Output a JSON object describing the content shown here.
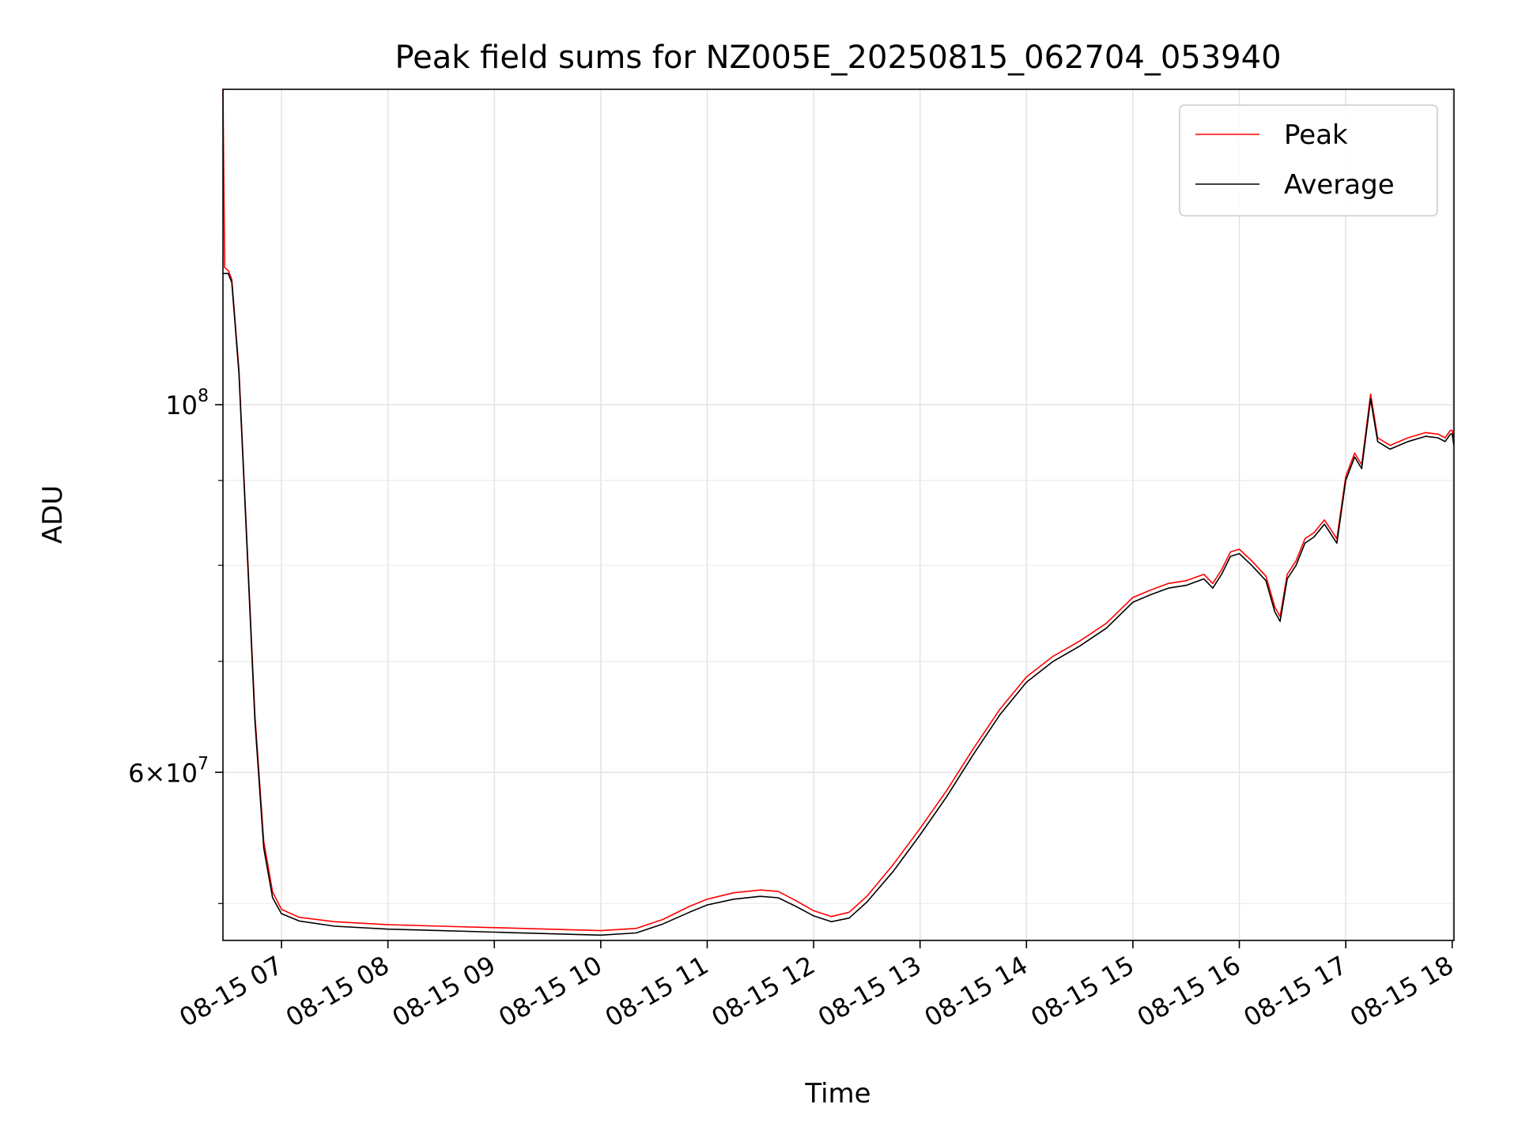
{
  "chart_data": {
    "type": "line",
    "title": "Peak field sums for NZ005E_20250815_062704_053940",
    "xlabel": "Time",
    "ylabel": "ADU",
    "y_scale": "log",
    "grid": true,
    "legend_position": "top-right",
    "xlim": [
      "2025-08-15 06:27",
      "2025-08-15 18:01"
    ],
    "ylim": [
      47500000,
      155000000
    ],
    "x_ticks": [
      {
        "t": "2025-08-15 07:00",
        "label": "08-15 07"
      },
      {
        "t": "2025-08-15 08:00",
        "label": "08-15 08"
      },
      {
        "t": "2025-08-15 09:00",
        "label": "08-15 09"
      },
      {
        "t": "2025-08-15 10:00",
        "label": "08-15 10"
      },
      {
        "t": "2025-08-15 11:00",
        "label": "08-15 11"
      },
      {
        "t": "2025-08-15 12:00",
        "label": "08-15 12"
      },
      {
        "t": "2025-08-15 13:00",
        "label": "08-15 13"
      },
      {
        "t": "2025-08-15 14:00",
        "label": "08-15 14"
      },
      {
        "t": "2025-08-15 15:00",
        "label": "08-15 15"
      },
      {
        "t": "2025-08-15 16:00",
        "label": "08-15 16"
      },
      {
        "t": "2025-08-15 17:00",
        "label": "08-15 17"
      },
      {
        "t": "2025-08-15 18:00",
        "label": "08-15 18"
      }
    ],
    "y_major_ticks": [
      {
        "value": 60000000,
        "base": "6×10",
        "exp": "7"
      },
      {
        "value": 100000000,
        "base": "10",
        "exp": "8"
      }
    ],
    "y_minor_ticks": [
      50000000,
      70000000,
      80000000,
      90000000
    ],
    "series": [
      {
        "name": "Peak",
        "color": "#ff0000",
        "points": [
          [
            "2025-08-15 06:27",
            155000000
          ],
          [
            "2025-08-15 06:28",
            121000000
          ],
          [
            "2025-08-15 06:30",
            120500000
          ],
          [
            "2025-08-15 06:32",
            119000000
          ],
          [
            "2025-08-15 06:36",
            105000000
          ],
          [
            "2025-08-15 06:40",
            85000000
          ],
          [
            "2025-08-15 06:45",
            65000000
          ],
          [
            "2025-08-15 06:50",
            54500000
          ],
          [
            "2025-08-15 06:55",
            50800000
          ],
          [
            "2025-08-15 07:00",
            49600000
          ],
          [
            "2025-08-15 07:10",
            49050000
          ],
          [
            "2025-08-15 07:30",
            48750000
          ],
          [
            "2025-08-15 08:00",
            48550000
          ],
          [
            "2025-08-15 08:30",
            48450000
          ],
          [
            "2025-08-15 09:00",
            48350000
          ],
          [
            "2025-08-15 09:30",
            48250000
          ],
          [
            "2025-08-15 10:00",
            48150000
          ],
          [
            "2025-08-15 10:20",
            48300000
          ],
          [
            "2025-08-15 10:35",
            48900000
          ],
          [
            "2025-08-15 10:50",
            49800000
          ],
          [
            "2025-08-15 11:00",
            50300000
          ],
          [
            "2025-08-15 11:15",
            50750000
          ],
          [
            "2025-08-15 11:30",
            50950000
          ],
          [
            "2025-08-15 11:40",
            50850000
          ],
          [
            "2025-08-15 11:50",
            50200000
          ],
          [
            "2025-08-15 12:00",
            49500000
          ],
          [
            "2025-08-15 12:10",
            49100000
          ],
          [
            "2025-08-15 12:20",
            49400000
          ],
          [
            "2025-08-15 12:30",
            50500000
          ],
          [
            "2025-08-15 12:45",
            52800000
          ],
          [
            "2025-08-15 13:00",
            55500000
          ],
          [
            "2025-08-15 13:15",
            58500000
          ],
          [
            "2025-08-15 13:30",
            62000000
          ],
          [
            "2025-08-15 13:45",
            65500000
          ],
          [
            "2025-08-15 14:00",
            68500000
          ],
          [
            "2025-08-15 14:15",
            70500000
          ],
          [
            "2025-08-15 14:30",
            72000000
          ],
          [
            "2025-08-15 14:45",
            73800000
          ],
          [
            "2025-08-15 15:00",
            76500000
          ],
          [
            "2025-08-15 15:10",
            77300000
          ],
          [
            "2025-08-15 15:20",
            78000000
          ],
          [
            "2025-08-15 15:30",
            78300000
          ],
          [
            "2025-08-15 15:40",
            79000000
          ],
          [
            "2025-08-15 15:45",
            78000000
          ],
          [
            "2025-08-15 15:50",
            79500000
          ],
          [
            "2025-08-15 15:55",
            81500000
          ],
          [
            "2025-08-15 16:00",
            81800000
          ],
          [
            "2025-08-15 16:07",
            80500000
          ],
          [
            "2025-08-15 16:15",
            78800000
          ],
          [
            "2025-08-15 16:20",
            75500000
          ],
          [
            "2025-08-15 16:23",
            74500000
          ],
          [
            "2025-08-15 16:27",
            79000000
          ],
          [
            "2025-08-15 16:32",
            80500000
          ],
          [
            "2025-08-15 16:37",
            83000000
          ],
          [
            "2025-08-15 16:42",
            83700000
          ],
          [
            "2025-08-15 16:48",
            85200000
          ],
          [
            "2025-08-15 16:55",
            83000000
          ],
          [
            "2025-08-15 17:00",
            90500000
          ],
          [
            "2025-08-15 17:05",
            93500000
          ],
          [
            "2025-08-15 17:09",
            92000000
          ],
          [
            "2025-08-15 17:14",
            101500000
          ],
          [
            "2025-08-15 17:18",
            95500000
          ],
          [
            "2025-08-15 17:25",
            94500000
          ],
          [
            "2025-08-15 17:35",
            95500000
          ],
          [
            "2025-08-15 17:45",
            96200000
          ],
          [
            "2025-08-15 17:52",
            96000000
          ],
          [
            "2025-08-15 17:56",
            95500000
          ],
          [
            "2025-08-15 17:59",
            96500000
          ],
          [
            "2025-08-15 18:00",
            96500000
          ],
          [
            "2025-08-15 18:01",
            95000000
          ]
        ]
      },
      {
        "name": "Average",
        "color": "#000000",
        "points": [
          [
            "2025-08-15 06:27",
            120000000
          ],
          [
            "2025-08-15 06:28",
            120000000
          ],
          [
            "2025-08-15 06:30",
            120000000
          ],
          [
            "2025-08-15 06:32",
            118500000
          ],
          [
            "2025-08-15 06:36",
            104500000
          ],
          [
            "2025-08-15 06:40",
            84500000
          ],
          [
            "2025-08-15 06:45",
            64500000
          ],
          [
            "2025-08-15 06:50",
            54000000
          ],
          [
            "2025-08-15 06:55",
            50400000
          ],
          [
            "2025-08-15 07:00",
            49300000
          ],
          [
            "2025-08-15 07:10",
            48800000
          ],
          [
            "2025-08-15 07:30",
            48450000
          ],
          [
            "2025-08-15 08:00",
            48250000
          ],
          [
            "2025-08-15 08:30",
            48150000
          ],
          [
            "2025-08-15 09:00",
            48050000
          ],
          [
            "2025-08-15 09:30",
            47950000
          ],
          [
            "2025-08-15 10:00",
            47850000
          ],
          [
            "2025-08-15 10:20",
            48000000
          ],
          [
            "2025-08-15 10:35",
            48600000
          ],
          [
            "2025-08-15 10:50",
            49400000
          ],
          [
            "2025-08-15 11:00",
            49900000
          ],
          [
            "2025-08-15 11:15",
            50300000
          ],
          [
            "2025-08-15 11:30",
            50500000
          ],
          [
            "2025-08-15 11:40",
            50400000
          ],
          [
            "2025-08-15 11:50",
            49800000
          ],
          [
            "2025-08-15 12:00",
            49150000
          ],
          [
            "2025-08-15 12:10",
            48750000
          ],
          [
            "2025-08-15 12:20",
            49000000
          ],
          [
            "2025-08-15 12:30",
            50100000
          ],
          [
            "2025-08-15 12:45",
            52300000
          ],
          [
            "2025-08-15 13:00",
            55000000
          ],
          [
            "2025-08-15 13:15",
            58000000
          ],
          [
            "2025-08-15 13:30",
            61500000
          ],
          [
            "2025-08-15 13:45",
            65000000
          ],
          [
            "2025-08-15 14:00",
            68000000
          ],
          [
            "2025-08-15 14:15",
            70000000
          ],
          [
            "2025-08-15 14:30",
            71500000
          ],
          [
            "2025-08-15 14:45",
            73300000
          ],
          [
            "2025-08-15 15:00",
            76000000
          ],
          [
            "2025-08-15 15:10",
            76800000
          ],
          [
            "2025-08-15 15:20",
            77500000
          ],
          [
            "2025-08-15 15:30",
            77800000
          ],
          [
            "2025-08-15 15:40",
            78500000
          ],
          [
            "2025-08-15 15:45",
            77500000
          ],
          [
            "2025-08-15 15:50",
            79000000
          ],
          [
            "2025-08-15 15:55",
            81000000
          ],
          [
            "2025-08-15 16:00",
            81300000
          ],
          [
            "2025-08-15 16:07",
            80000000
          ],
          [
            "2025-08-15 16:15",
            78300000
          ],
          [
            "2025-08-15 16:20",
            75000000
          ],
          [
            "2025-08-15 16:23",
            74000000
          ],
          [
            "2025-08-15 16:27",
            78500000
          ],
          [
            "2025-08-15 16:32",
            80000000
          ],
          [
            "2025-08-15 16:37",
            82500000
          ],
          [
            "2025-08-15 16:42",
            83200000
          ],
          [
            "2025-08-15 16:48",
            84700000
          ],
          [
            "2025-08-15 16:55",
            82500000
          ],
          [
            "2025-08-15 17:00",
            90000000
          ],
          [
            "2025-08-15 17:05",
            93000000
          ],
          [
            "2025-08-15 17:09",
            91500000
          ],
          [
            "2025-08-15 17:14",
            100800000
          ],
          [
            "2025-08-15 17:18",
            95000000
          ],
          [
            "2025-08-15 17:25",
            94000000
          ],
          [
            "2025-08-15 17:35",
            95000000
          ],
          [
            "2025-08-15 17:45",
            95700000
          ],
          [
            "2025-08-15 17:52",
            95500000
          ],
          [
            "2025-08-15 17:56",
            95000000
          ],
          [
            "2025-08-15 17:59",
            96000000
          ],
          [
            "2025-08-15 18:00",
            96000000
          ],
          [
            "2025-08-15 18:01",
            94500000
          ]
        ]
      }
    ]
  }
}
